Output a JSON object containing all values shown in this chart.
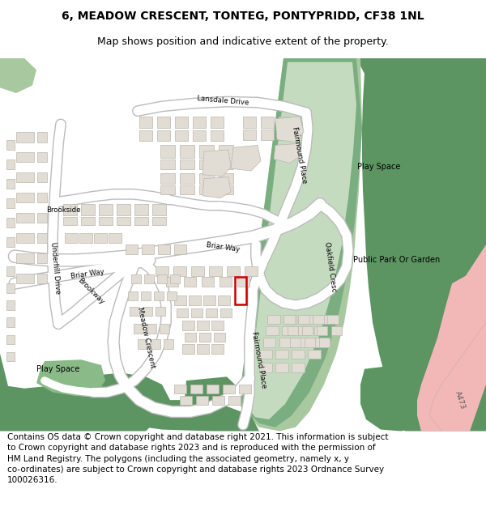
{
  "title_line1": "6, MEADOW CRESCENT, TONTEG, PONTYPRIDD, CF38 1NL",
  "title_line2": "Map shows position and indicative extent of the property.",
  "footer_text": "Contains OS data © Crown copyright and database right 2021. This information is subject to Crown copyright and database rights 2023 and is reproduced with the permission of HM Land Registry. The polygons (including the associated geometry, namely x, y co-ordinates) are subject to Crown copyright and database rights 2023 Ordnance Survey 100026316.",
  "bg_color": "#ffffff",
  "map_bg": "#f0ece3",
  "building_fill": "#e2ddd4",
  "building_stroke": "#bab6ae",
  "green_dark": "#5c9462",
  "green_mid": "#7aae80",
  "green_light": "#a8c8a0",
  "green_pale": "#c5dbc0",
  "green_play": "#8aba88",
  "road_color": "#ffffff",
  "road_border": "#bbbbbb",
  "property_color": "#cc0000",
  "a473_color": "#f2b8b8",
  "title_fontsize": 10,
  "subtitle_fontsize": 9,
  "footer_fontsize": 7.5
}
